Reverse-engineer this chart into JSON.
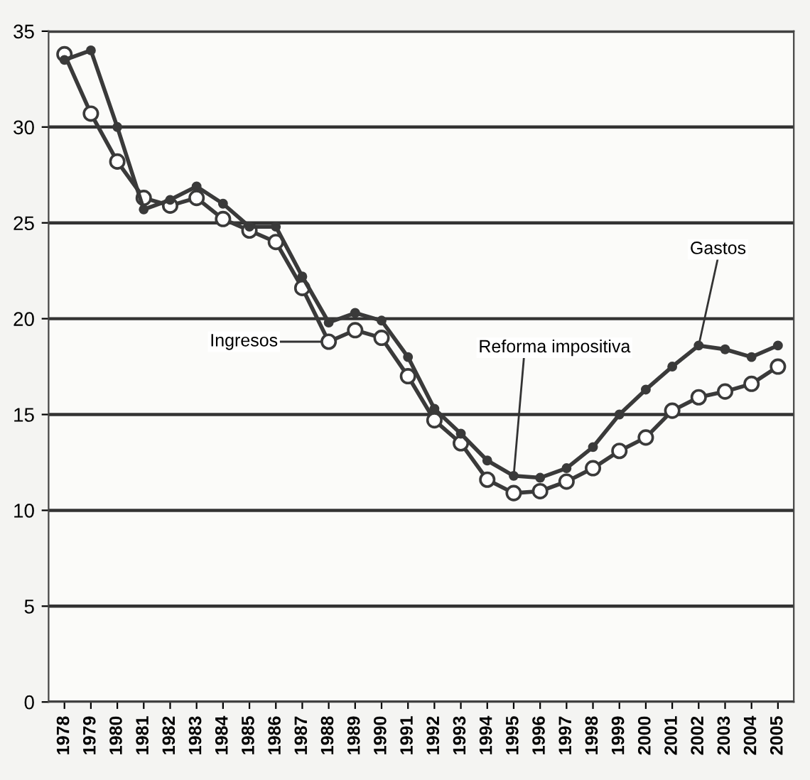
{
  "chart_data": {
    "type": "line",
    "categories": [
      "1978",
      "1979",
      "1980",
      "1981",
      "1982",
      "1983",
      "1984",
      "1985",
      "1986",
      "1987",
      "1988",
      "1989",
      "1990",
      "1991",
      "1992",
      "1993",
      "1994",
      "1995",
      "1996",
      "1997",
      "1998",
      "1999",
      "2000",
      "2001",
      "2002",
      "2003",
      "2004",
      "2005"
    ],
    "series": [
      {
        "color": "#3a3a3a",
        "marker": "circle",
        "values": [
          33.5,
          34.0,
          30.0,
          25.7,
          26.2,
          26.9,
          26.0,
          24.8,
          24.8,
          22.2,
          19.8,
          20.3,
          19.9,
          18.0,
          15.3,
          14.0,
          12.6,
          11.8,
          11.7,
          12.2,
          13.3,
          15.0,
          16.3,
          17.5,
          18.6,
          18.4,
          18.0,
          18.6
        ]
      },
      {
        "color": "#3a3a3a",
        "marker": "circle",
        "values": [
          33.8,
          30.7,
          28.2,
          26.3,
          25.9,
          26.3,
          25.2,
          24.6,
          24.0,
          21.6,
          18.8,
          19.4,
          19.0,
          17.0,
          14.7,
          13.5,
          11.6,
          10.9,
          11.0,
          11.5,
          12.2,
          13.1,
          13.8,
          15.2,
          15.9,
          16.2,
          16.6,
          17.5
        ]
      }
    ],
    "annotations": [
      {
        "text": "Ingresos",
        "x": "1988",
        "y": 18.8
      },
      {
        "text": "Reforma impositiva",
        "x": "1995",
        "y": 11.8
      },
      {
        "text": "Gastos",
        "x": "2002",
        "y": 18.6
      }
    ],
    "ylim": [
      0,
      35
    ],
    "yticks": [
      0,
      5,
      10,
      15,
      20,
      25,
      30,
      35
    ],
    "grid": "y",
    "line_style": "solid"
  }
}
